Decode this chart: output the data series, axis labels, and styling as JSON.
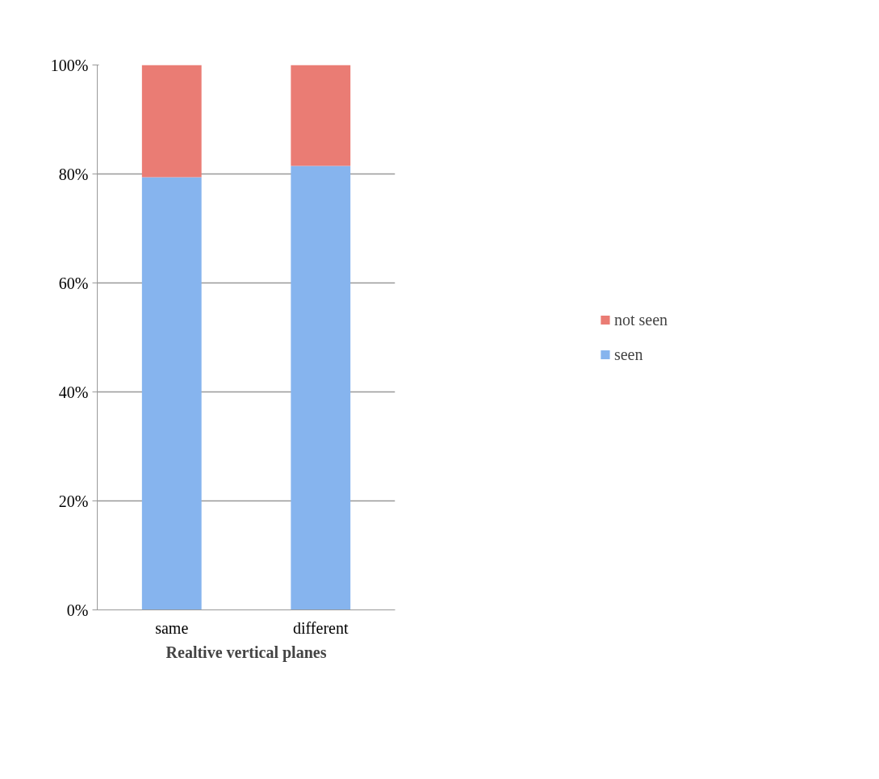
{
  "chart_data": {
    "type": "bar",
    "stacked": true,
    "xlabel": "Realtive vertical planes",
    "categories": [
      "same",
      "different"
    ],
    "series": [
      {
        "name": "seen",
        "color": "#86b4ee",
        "values": [
          79.4,
          81.5
        ]
      },
      {
        "name": "not seen",
        "color": "#ea7c74",
        "values": [
          20.6,
          18.5
        ]
      }
    ],
    "ylim": [
      0,
      100
    ],
    "yticks": [
      {
        "value": 0,
        "label": "0%"
      },
      {
        "value": 20,
        "label": "20%"
      },
      {
        "value": 40,
        "label": "40%"
      },
      {
        "value": 60,
        "label": "60%"
      },
      {
        "value": 80,
        "label": "80%"
      },
      {
        "value": 100,
        "label": "100%"
      }
    ],
    "grid": "y",
    "legend": "right"
  }
}
